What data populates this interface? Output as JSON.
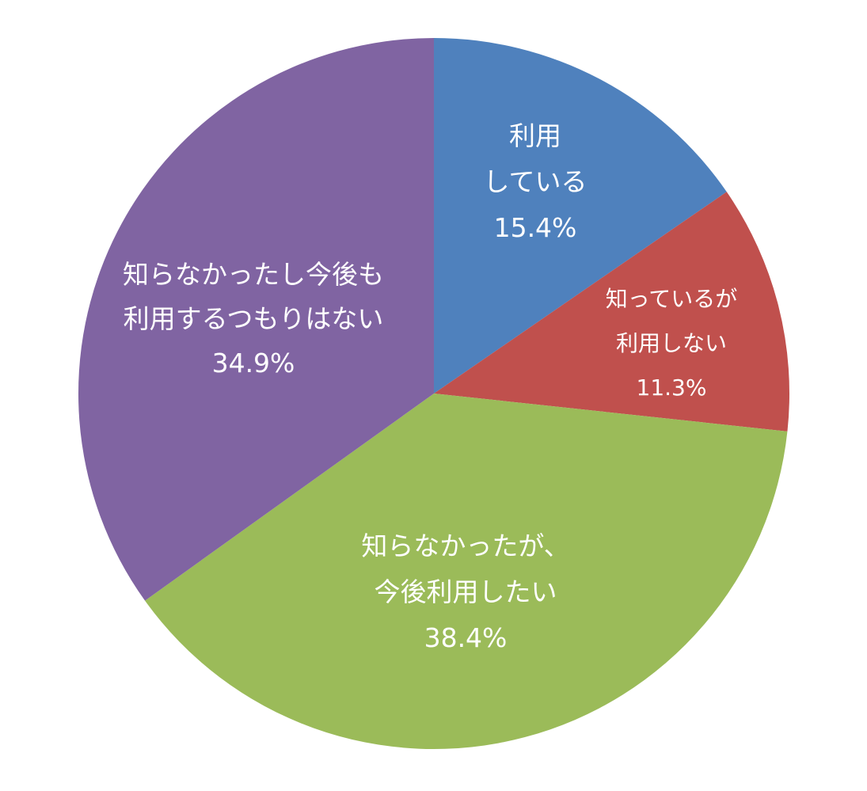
{
  "chart_data": {
    "type": "pie",
    "start_angle_deg": 0,
    "direction": "clockwise",
    "slices": [
      {
        "label_lines": [
          "利用",
          "している",
          "15.4%"
        ],
        "value": 15.4,
        "color": "#4F81BD"
      },
      {
        "label_lines": [
          "知っているが",
          "利用しない",
          "11.3%"
        ],
        "value": 11.3,
        "color": "#C0504D"
      },
      {
        "label_lines": [
          "知らなかったが、",
          "今後利用したい",
          "38.4%"
        ],
        "value": 38.4,
        "color": "#9BBB59"
      },
      {
        "label_lines": [
          "知らなかったし今後も",
          "利用するつもりはない",
          "34.9%"
        ],
        "value": 34.9,
        "color": "#8064A2"
      }
    ]
  }
}
